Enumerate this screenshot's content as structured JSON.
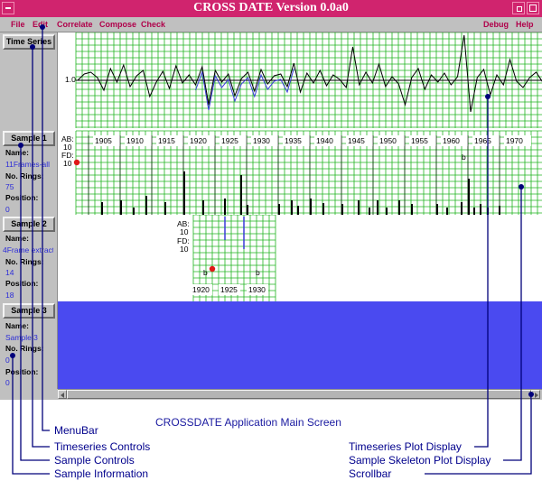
{
  "window": {
    "title": "CROSS DATE Version 0.0a0",
    "title_bar_color": "#d0246e"
  },
  "menubar": {
    "items": [
      "File",
      "Edit",
      "Correlate",
      "Compose",
      "Check"
    ],
    "right_items": [
      "Debug",
      "Help"
    ]
  },
  "timeseries": {
    "button_label": "Time Series",
    "y_axis_label": "1.0",
    "series_colors": [
      "#000000",
      "#3a3ad8"
    ]
  },
  "samples": [
    {
      "button_label": "Sample 1",
      "name_label": "Name:",
      "name": "11Frames-all",
      "rings_label": "No. Rings:",
      "rings": "75",
      "position_label": "Position:",
      "position": "0"
    },
    {
      "button_label": "Sample 2",
      "name_label": "Name:",
      "name": "4Frame extract",
      "rings_label": "No. Rings:",
      "rings": "14",
      "position_label": "Position:",
      "position": "18"
    },
    {
      "button_label": "Sample 3",
      "name_label": "Name:",
      "name": "Sample 3",
      "rings_label": "No. Rings:",
      "rings": "0",
      "position_label": "Position:",
      "position": "0"
    }
  ],
  "skeleton1": {
    "ab_label": "AB:",
    "ab_value": "10",
    "fd_label": "FD:",
    "fd_value": "10",
    "years": [
      "1905",
      "1910",
      "1915",
      "1920",
      "1925",
      "1930",
      "1935",
      "1940",
      "1945",
      "1950",
      "1955",
      "1960",
      "1965",
      "1970"
    ],
    "marker": "b"
  },
  "skeleton2": {
    "ab_label": "AB:",
    "ab_value": "10",
    "fd_label": "FD:",
    "fd_value": "10",
    "years": [
      "1920",
      "1925",
      "1930"
    ],
    "marker_left": "b",
    "marker_right": "b"
  },
  "sample3_fill_color": "#4a4af0",
  "grid_color": "#22b422",
  "captions": {
    "title": "CROSSDATE Application Main Screen",
    "menubar": "MenuBar",
    "timeseries_controls": "Timeseries Controls",
    "sample_controls": "Sample Controls",
    "sample_information": "Sample Information",
    "timeseries_plot": "Timeseries Plot Display",
    "skeleton_plot": "Sample Skeleton Plot Display",
    "scrollbar": "Scrollbar"
  }
}
